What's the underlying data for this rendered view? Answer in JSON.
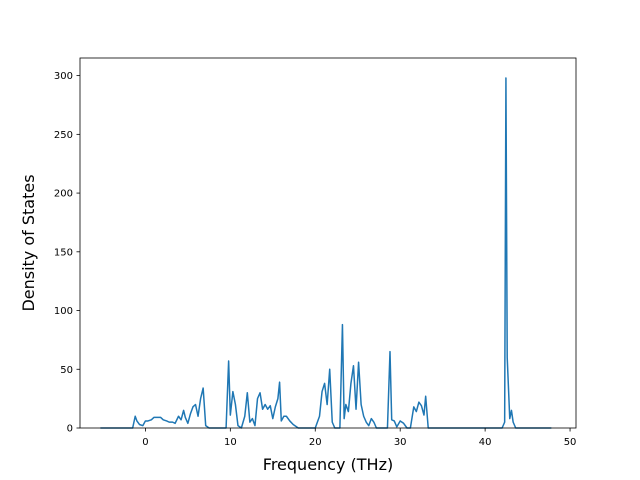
{
  "chart_data": {
    "type": "line",
    "title": "",
    "xlabel": "Frequency (THz)",
    "ylabel": "Density of States",
    "xlim": [
      -7.7,
      50.7
    ],
    "ylim": [
      0,
      315
    ],
    "xticks": [
      0,
      10,
      20,
      30,
      40,
      50
    ],
    "yticks": [
      0,
      50,
      100,
      150,
      200,
      250,
      300
    ],
    "xtick_labels": [
      "0",
      "10",
      "20",
      "30",
      "40",
      "50"
    ],
    "ytick_labels": [
      "0",
      "50",
      "100",
      "150",
      "200",
      "250",
      "300"
    ],
    "grid": false,
    "legend": "none",
    "series_color": "#1f77b4",
    "series": [
      {
        "x": [
          -5.3,
          -1.5,
          -1.2,
          -1.0,
          -0.7,
          -0.3,
          0.0,
          0.3,
          0.7,
          1.0,
          1.4,
          1.8,
          2.1,
          2.5,
          2.8,
          3.2,
          3.5,
          3.9,
          4.2,
          4.5,
          4.7,
          5.0,
          5.3,
          5.6,
          5.9,
          6.2,
          6.5,
          6.8,
          7.1,
          7.5,
          8.5,
          9.5,
          9.8,
          10.0,
          10.3,
          10.6,
          10.9,
          11.3,
          11.7,
          12.0,
          12.3,
          12.6,
          12.9,
          13.2,
          13.5,
          13.8,
          14.1,
          14.4,
          14.7,
          15.0,
          15.3,
          15.6,
          15.8,
          16.0,
          16.3,
          16.6,
          17.0,
          17.4,
          18.0,
          20.0,
          20.5,
          20.8,
          21.1,
          21.4,
          21.7,
          22.0,
          22.3,
          22.6,
          22.9,
          23.2,
          23.4,
          23.6,
          23.9,
          24.2,
          24.5,
          24.8,
          25.1,
          25.4,
          25.7,
          26.0,
          26.3,
          26.6,
          26.9,
          27.2,
          27.6,
          28.5,
          28.8,
          29.0,
          29.3,
          29.6,
          30.0,
          30.4,
          30.8,
          31.2,
          31.6,
          31.9,
          32.2,
          32.5,
          32.8,
          33.0,
          33.3,
          33.6,
          42.0,
          42.3,
          42.45,
          42.6,
          42.9,
          43.1,
          43.3,
          43.6,
          47.8
        ],
        "y": [
          0,
          0,
          10,
          6,
          3,
          2,
          6,
          6,
          7,
          9,
          9,
          9,
          7,
          6,
          5,
          5,
          4,
          10,
          7,
          15,
          9,
          4,
          12,
          18,
          20,
          10,
          25,
          34,
          2,
          0,
          0,
          0,
          57,
          11,
          31,
          20,
          2,
          0,
          10,
          30,
          5,
          8,
          2,
          25,
          30,
          16,
          20,
          16,
          19,
          8,
          18,
          25,
          39,
          6,
          10,
          10,
          6,
          3,
          0,
          0,
          10,
          31,
          38,
          20,
          50,
          5,
          0,
          0,
          0,
          88,
          8,
          20,
          14,
          38,
          53,
          16,
          56,
          20,
          10,
          5,
          2,
          8,
          5,
          0,
          0,
          0,
          65,
          7,
          6,
          1,
          6,
          4,
          0,
          0,
          18,
          14,
          22,
          19,
          11,
          27,
          0,
          0,
          0,
          5,
          298,
          60,
          8,
          15,
          5,
          0,
          0
        ]
      }
    ]
  }
}
